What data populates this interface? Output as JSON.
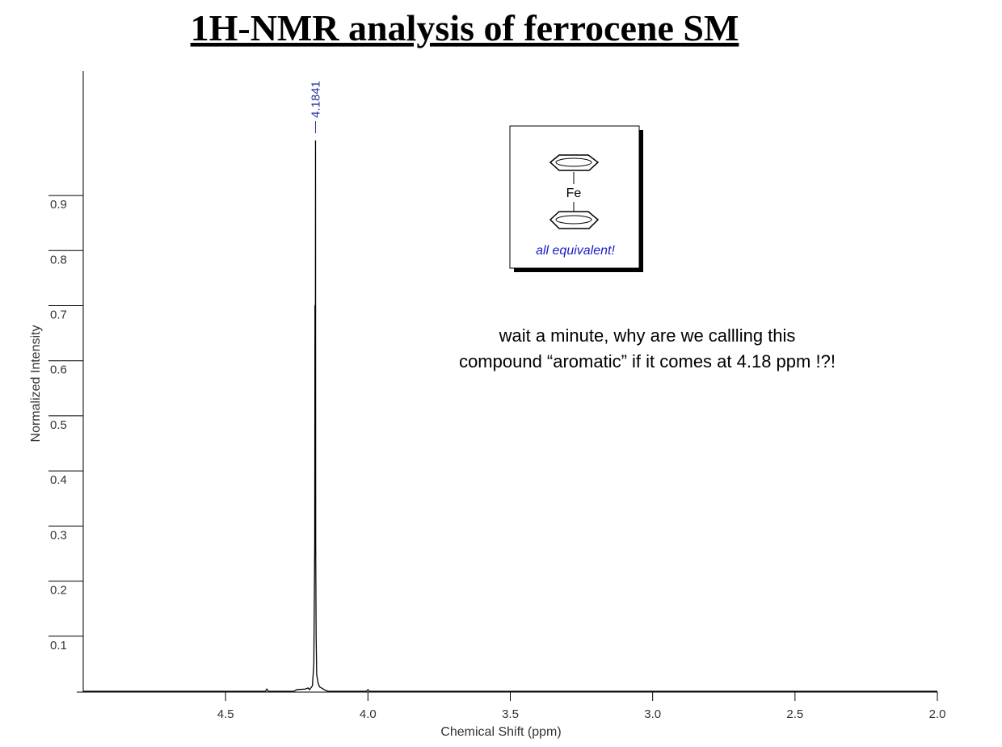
{
  "chart_data": {
    "type": "line",
    "title": "1H-NMR analysis of ferrocene SM",
    "x_label": "Chemical Shift (ppm)",
    "y_label": "Normalized Intensity",
    "x": [
      5.0,
      4.36,
      4.355,
      4.35,
      4.26,
      4.25,
      4.22,
      4.21,
      4.205,
      4.195,
      4.19,
      4.187,
      4.186,
      4.1845,
      4.1841,
      4.1835,
      4.182,
      4.18,
      4.175,
      4.17,
      4.16,
      4.15,
      4.14,
      4.005,
      4.0,
      3.995,
      2.0
    ],
    "values": [
      0,
      0,
      0.004,
      0,
      0,
      0.003,
      0.004,
      0.006,
      0.003,
      0.01,
      0.05,
      0.26,
      0.7,
      0.7,
      1.0,
      0.26,
      0.1,
      0.03,
      0.015,
      0.008,
      0.005,
      0.002,
      0,
      0,
      0.003,
      0,
      0
    ],
    "color": "#000000",
    "xlim": [
      5.0,
      2.0
    ],
    "ylim": [
      0,
      1.12
    ],
    "xticks": [
      4.5,
      {
        "value": 4.0,
        "label": "4.0"
      },
      3.5,
      {
        "value": 3.0,
        "label": "3.0"
      },
      2.5,
      {
        "value": 2.0,
        "label": "2.0"
      }
    ],
    "yticks": [
      0.1,
      0.2,
      0.3,
      0.4,
      0.5,
      0.6,
      0.7,
      0.8,
      0.9
    ],
    "peak": {
      "x": 4.1841,
      "label_color": "#27359a"
    },
    "annotation": [
      "wait a minute, why are we callling this",
      "compound “aromatic” if it comes at 4.18 ppm !?!"
    ],
    "inset": {
      "atom": "Fe",
      "caption": "all equivalent!"
    }
  }
}
